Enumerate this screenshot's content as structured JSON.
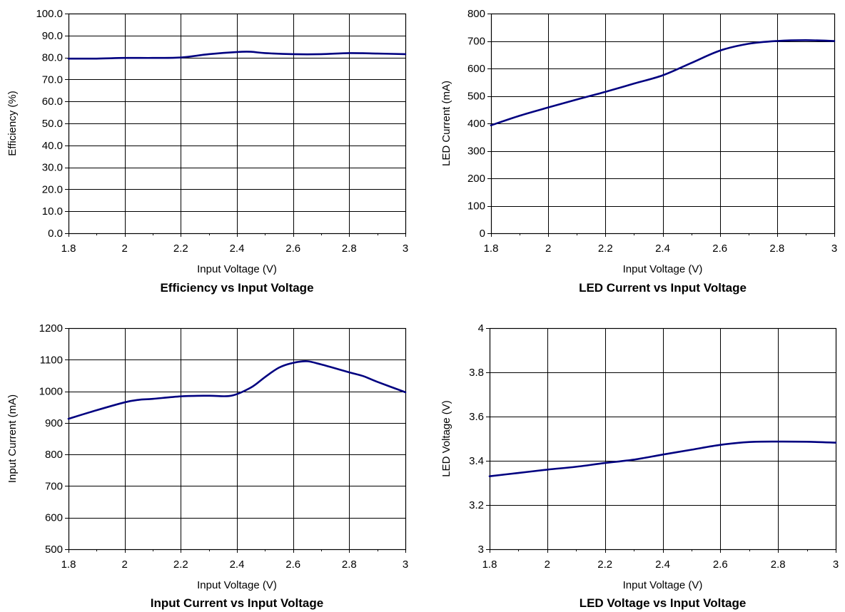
{
  "chart_data": [
    {
      "type": "line",
      "title": "Efficiency vs Input Voltage",
      "xlabel": "Input Voltage (V)",
      "ylabel": "Efficiency (%)",
      "xlim": [
        1.8,
        3.0
      ],
      "ylim": [
        0,
        100
      ],
      "xticks": [
        1.8,
        2.0,
        2.2,
        2.4,
        2.6,
        2.8,
        3.0
      ],
      "xtick_labels": [
        "1.8",
        "2",
        "2.2",
        "2.4",
        "2.6",
        "2.8",
        "3"
      ],
      "yticks": [
        0,
        10,
        20,
        30,
        40,
        50,
        60,
        70,
        80,
        90,
        100
      ],
      "ytick_labels": [
        "0.0",
        "10.0",
        "20.0",
        "30.0",
        "40.0",
        "50.0",
        "60.0",
        "70.0",
        "80.0",
        "90.0",
        "100.0"
      ],
      "grid": true,
      "series": [
        {
          "color": "#000080",
          "x": [
            1.8,
            1.9,
            2.0,
            2.1,
            2.2,
            2.3,
            2.4,
            2.45,
            2.5,
            2.6,
            2.7,
            2.8,
            2.9,
            3.0
          ],
          "y": [
            79.5,
            79.5,
            79.8,
            79.8,
            80.0,
            81.5,
            82.5,
            82.6,
            82.0,
            81.5,
            81.5,
            82.0,
            81.8,
            81.5
          ]
        }
      ]
    },
    {
      "type": "line",
      "title": "LED Current vs Input Voltage",
      "xlabel": "Input Voltage (V)",
      "ylabel": "LED Current (mA)",
      "xlim": [
        1.8,
        3.0
      ],
      "ylim": [
        0,
        800
      ],
      "xticks": [
        1.8,
        2.0,
        2.2,
        2.4,
        2.6,
        2.8,
        3.0
      ],
      "xtick_labels": [
        "1.8",
        "2",
        "2.2",
        "2.4",
        "2.6",
        "2.8",
        "3"
      ],
      "yticks": [
        0,
        100,
        200,
        300,
        400,
        500,
        600,
        700,
        800
      ],
      "ytick_labels": [
        "0",
        "100",
        "200",
        "300",
        "400",
        "500",
        "600",
        "700",
        "800"
      ],
      "grid": true,
      "series": [
        {
          "color": "#000080",
          "x": [
            1.8,
            1.9,
            2.0,
            2.1,
            2.2,
            2.3,
            2.4,
            2.5,
            2.6,
            2.7,
            2.8,
            2.9,
            3.0
          ],
          "y": [
            393,
            428,
            458,
            487,
            515,
            545,
            575,
            620,
            665,
            690,
            700,
            703,
            700
          ]
        }
      ]
    },
    {
      "type": "line",
      "title": "Input Current vs Input Voltage",
      "xlabel": "Input Voltage (V)",
      "ylabel": "Input Current (mA)",
      "xlim": [
        1.8,
        3.0
      ],
      "ylim": [
        500,
        1200
      ],
      "xticks": [
        1.8,
        2.0,
        2.2,
        2.4,
        2.6,
        2.8,
        3.0
      ],
      "xtick_labels": [
        "1.8",
        "2",
        "2.2",
        "2.4",
        "2.6",
        "2.8",
        "3"
      ],
      "yticks": [
        500,
        600,
        700,
        800,
        900,
        1000,
        1100,
        1200
      ],
      "ytick_labels": [
        "500",
        "600",
        "700",
        "800",
        "900",
        "1000",
        "1100",
        "1200"
      ],
      "grid": true,
      "series": [
        {
          "color": "#000080",
          "x": [
            1.8,
            1.9,
            2.0,
            2.05,
            2.1,
            2.2,
            2.3,
            2.38,
            2.45,
            2.5,
            2.55,
            2.6,
            2.65,
            2.7,
            2.8,
            2.85,
            2.9,
            3.0
          ],
          "y": [
            913,
            940,
            965,
            973,
            976,
            984,
            986,
            986,
            1012,
            1045,
            1075,
            1090,
            1095,
            1085,
            1060,
            1048,
            1030,
            997
          ]
        }
      ]
    },
    {
      "type": "line",
      "title": "LED Voltage vs Input Voltage",
      "xlabel": "Input Voltage (V)",
      "ylabel": "LED Voltage (V)",
      "xlim": [
        1.8,
        3.0
      ],
      "ylim": [
        3.0,
        4.0
      ],
      "xticks": [
        1.8,
        2.0,
        2.2,
        2.4,
        2.6,
        2.8,
        3.0
      ],
      "xtick_labels": [
        "1.8",
        "2",
        "2.2",
        "2.4",
        "2.6",
        "2.8",
        "3"
      ],
      "yticks": [
        3.0,
        3.2,
        3.4,
        3.6,
        3.8,
        4.0
      ],
      "ytick_labels": [
        "3",
        "3.2",
        "3.4",
        "3.6",
        "3.8",
        "4"
      ],
      "grid": true,
      "series": [
        {
          "color": "#000080",
          "x": [
            1.8,
            1.9,
            2.0,
            2.1,
            2.2,
            2.3,
            2.4,
            2.5,
            2.6,
            2.7,
            2.8,
            2.9,
            3.0
          ],
          "y": [
            3.33,
            3.345,
            3.36,
            3.373,
            3.39,
            3.405,
            3.428,
            3.45,
            3.472,
            3.485,
            3.487,
            3.486,
            3.482
          ]
        }
      ]
    }
  ]
}
